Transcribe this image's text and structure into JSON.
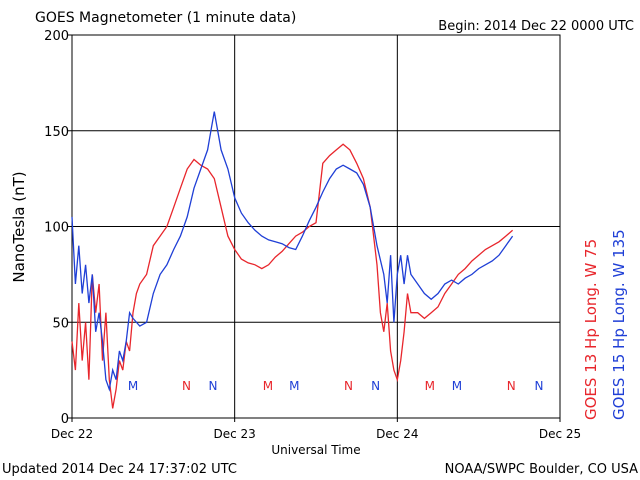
{
  "chart_data": {
    "type": "line",
    "title": "GOES Magnetometer (1 minute data)",
    "subtitle": "Begin:  2014 Dec 22 0000 UTC",
    "xlabel": "Universal Time",
    "ylabel": "NanoTesla (nT)",
    "footer_left": "Updated 2014 Dec 24 17:37:02 UTC",
    "footer_right": "NOAA/SWPC Boulder, CO USA",
    "xlim": [
      0,
      72
    ],
    "xticks": [
      {
        "value": 0,
        "label": "Dec 22"
      },
      {
        "value": 24,
        "label": "Dec 23"
      },
      {
        "value": 48,
        "label": "Dec 24"
      },
      {
        "value": 72,
        "label": "Dec 25"
      }
    ],
    "ylim": [
      0,
      200
    ],
    "yticks": [
      0,
      50,
      100,
      150,
      200
    ],
    "grid": true,
    "series": [
      {
        "name": "GOES 13 Hp  Long. W 75",
        "color": "#e8262c",
        "x": [
          0,
          0.5,
          1,
          1.5,
          2,
          2.5,
          3,
          3.5,
          4,
          4.5,
          5,
          5.5,
          6,
          6.5,
          7,
          7.5,
          8,
          8.5,
          9,
          9.5,
          10,
          11,
          12,
          13,
          14,
          15,
          16,
          17,
          18,
          19,
          20,
          21,
          22,
          23,
          24,
          25,
          26,
          27,
          28,
          29,
          30,
          31,
          32,
          33,
          34,
          35,
          36,
          37,
          38,
          39,
          40,
          41,
          42,
          43,
          44,
          45,
          45.5,
          46,
          46.5,
          47,
          47.5,
          48,
          48.5,
          49,
          49.5,
          50,
          51,
          52,
          53,
          54,
          55,
          56,
          57,
          58,
          59,
          60,
          61,
          62,
          63,
          64,
          65
        ],
        "values": [
          40,
          25,
          60,
          30,
          50,
          20,
          75,
          55,
          70,
          30,
          55,
          20,
          5,
          15,
          30,
          25,
          40,
          35,
          55,
          65,
          70,
          75,
          90,
          95,
          100,
          110,
          120,
          130,
          135,
          132,
          130,
          125,
          110,
          95,
          88,
          83,
          81,
          80,
          78,
          80,
          84,
          87,
          91,
          95,
          97,
          100,
          102,
          133,
          137,
          140,
          143,
          140,
          133,
          125,
          110,
          80,
          55,
          45,
          60,
          35,
          25,
          20,
          30,
          45,
          65,
          55,
          55,
          52,
          55,
          58,
          65,
          70,
          75,
          78,
          82,
          85,
          88,
          90,
          92,
          95,
          98
        ]
      },
      {
        "name": "GOES 15 Hp  Long. W 135",
        "color": "#1f3fd6",
        "x": [
          0,
          0.5,
          1,
          1.5,
          2,
          2.5,
          3,
          3.5,
          4,
          4.5,
          5,
          5.5,
          6,
          6.5,
          7,
          7.5,
          8,
          8.5,
          9,
          10,
          11,
          12,
          13,
          14,
          15,
          16,
          17,
          18,
          19,
          20,
          20.5,
          21,
          21.5,
          22,
          23,
          24,
          25,
          26,
          27,
          28,
          29,
          30,
          31,
          32,
          33,
          34,
          35,
          36,
          37,
          38,
          39,
          40,
          41,
          42,
          43,
          44,
          45,
          46,
          46.5,
          47,
          47.5,
          48,
          48.5,
          49,
          49.5,
          50,
          51,
          52,
          53,
          54,
          55,
          56,
          57,
          58,
          59,
          60,
          61,
          62,
          63,
          64,
          65
        ],
        "values": [
          105,
          70,
          90,
          65,
          80,
          60,
          75,
          45,
          55,
          40,
          20,
          15,
          25,
          20,
          35,
          30,
          40,
          55,
          52,
          48,
          50,
          65,
          75,
          80,
          88,
          95,
          105,
          120,
          130,
          140,
          150,
          160,
          150,
          140,
          130,
          115,
          107,
          102,
          98,
          95,
          93,
          92,
          91,
          89,
          88,
          95,
          103,
          110,
          118,
          125,
          130,
          132,
          130,
          128,
          122,
          110,
          90,
          75,
          60,
          85,
          50,
          75,
          85,
          70,
          85,
          75,
          70,
          65,
          62,
          65,
          70,
          72,
          70,
          73,
          75,
          78,
          80,
          82,
          85,
          90,
          95
        ]
      }
    ],
    "annotations": [
      {
        "x": 9,
        "label": "M",
        "color": "#1f3fd6"
      },
      {
        "x": 16.9,
        "label": "N",
        "color": "#e8262c"
      },
      {
        "x": 20.8,
        "label": "N",
        "color": "#1f3fd6"
      },
      {
        "x": 28.9,
        "label": "M",
        "color": "#e8262c"
      },
      {
        "x": 32.8,
        "label": "M",
        "color": "#1f3fd6"
      },
      {
        "x": 40.8,
        "label": "N",
        "color": "#e8262c"
      },
      {
        "x": 44.8,
        "label": "N",
        "color": "#1f3fd6"
      },
      {
        "x": 52.8,
        "label": "M",
        "color": "#e8262c"
      },
      {
        "x": 56.8,
        "label": "M",
        "color": "#1f3fd6"
      },
      {
        "x": 64.8,
        "label": "N",
        "color": "#e8262c"
      },
      {
        "x": 68.9,
        "label": "N",
        "color": "#1f3fd6"
      }
    ]
  }
}
